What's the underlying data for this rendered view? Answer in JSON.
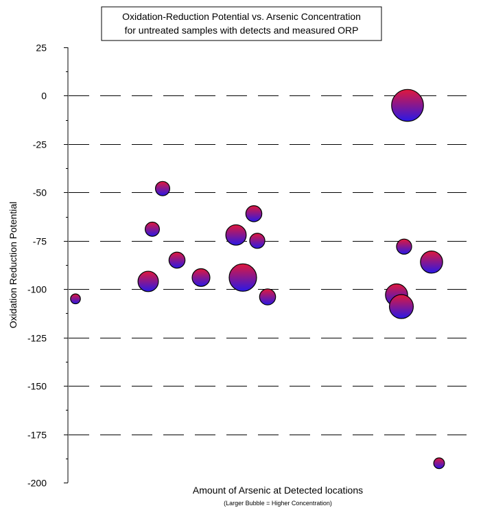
{
  "chart_data": {
    "type": "scatter",
    "title_lines": [
      "Oxidation-Reduction Potential vs. Arsenic Concentration",
      "for untreated samples with detects and measured ORP"
    ],
    "xlabel": "Amount of Arsenic at Detected locations",
    "xlabel_note": "(Larger Bubble = Higher Concentration)",
    "ylabel": "Oxidation Reduction Potential",
    "ylim": [
      -200,
      25
    ],
    "y_ticks": [
      25,
      0,
      -25,
      -50,
      -75,
      -100,
      -125,
      -150,
      -175,
      -200
    ],
    "y_tick_labels": [
      "25",
      "0",
      "-25",
      "-50",
      "-75",
      "-100",
      "-125",
      "-150",
      "-175",
      "-200"
    ],
    "grid": true,
    "bubble_colors": {
      "top": "#e0183c",
      "bottom": "#2a18e6"
    },
    "points": [
      {
        "x": 1,
        "y": -105,
        "size": 0.5
      },
      {
        "x": 2,
        "y": -96,
        "size": 1.7
      },
      {
        "x": 3,
        "y": -69,
        "size": 1.0
      },
      {
        "x": 4,
        "y": -48,
        "size": 1.0
      },
      {
        "x": 5,
        "y": -85,
        "size": 1.2
      },
      {
        "x": 6,
        "y": -94,
        "size": 1.4
      },
      {
        "x": 7,
        "y": -72,
        "size": 1.7
      },
      {
        "x": 8,
        "y": -94,
        "size": 2.5
      },
      {
        "x": 9,
        "y": -61,
        "size": 1.2
      },
      {
        "x": 10,
        "y": -75,
        "size": 1.1
      },
      {
        "x": 11,
        "y": -104,
        "size": 1.2
      },
      {
        "x": 12,
        "y": -103,
        "size": 1.9
      },
      {
        "x": 13,
        "y": -109,
        "size": 2.1
      },
      {
        "x": 14,
        "y": -78,
        "size": 1.1
      },
      {
        "x": 15,
        "y": -5,
        "size": 3.0
      },
      {
        "x": 16,
        "y": -86,
        "size": 1.9
      },
      {
        "x": 17,
        "y": -190,
        "size": 0.6
      }
    ]
  }
}
